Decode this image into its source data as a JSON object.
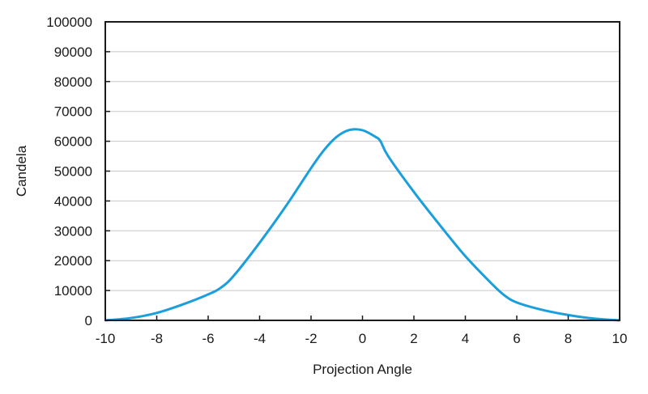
{
  "chart_data": {
    "type": "line",
    "title": "",
    "xlabel": "Projection Angle",
    "ylabel": "Candela",
    "xlim": [
      -10,
      10
    ],
    "ylim": [
      0,
      100000
    ],
    "x_ticks": [
      -10,
      -8,
      -6,
      -4,
      -2,
      0,
      2,
      4,
      6,
      8,
      10
    ],
    "y_ticks": [
      0,
      10000,
      20000,
      30000,
      40000,
      50000,
      60000,
      70000,
      80000,
      90000,
      100000
    ],
    "x_tick_labels": [
      "-10",
      "-8",
      "-6",
      "-4",
      "-2",
      "0",
      "2",
      "4",
      "6",
      "8",
      "10"
    ],
    "y_tick_labels": [
      "0",
      "10000",
      "20000",
      "30000",
      "40000",
      "50000",
      "60000",
      "70000",
      "80000",
      "90000",
      "100000"
    ],
    "grid": "horizontal",
    "legend": "none",
    "colors": {
      "line": "#1a9fdc",
      "axis": "#1a1a1a",
      "grid": "#c8c8c8"
    },
    "series": [
      {
        "x": [
          -10,
          -9,
          -8,
          -7,
          -6,
          -5.5,
          -5,
          -4,
          -3,
          -2,
          -1.5,
          -1,
          -0.5,
          0,
          0.5,
          0.7,
          1,
          2,
          3,
          4,
          5,
          5.5,
          6,
          7,
          8,
          9,
          10
        ],
        "values": [
          0,
          800,
          2500,
          5300,
          8700,
          11000,
          15000,
          26000,
          38000,
          51000,
          57000,
          61500,
          63800,
          63700,
          61500,
          60000,
          55000,
          43000,
          32000,
          21500,
          12500,
          8500,
          6000,
          3500,
          1800,
          600,
          0
        ]
      }
    ]
  }
}
